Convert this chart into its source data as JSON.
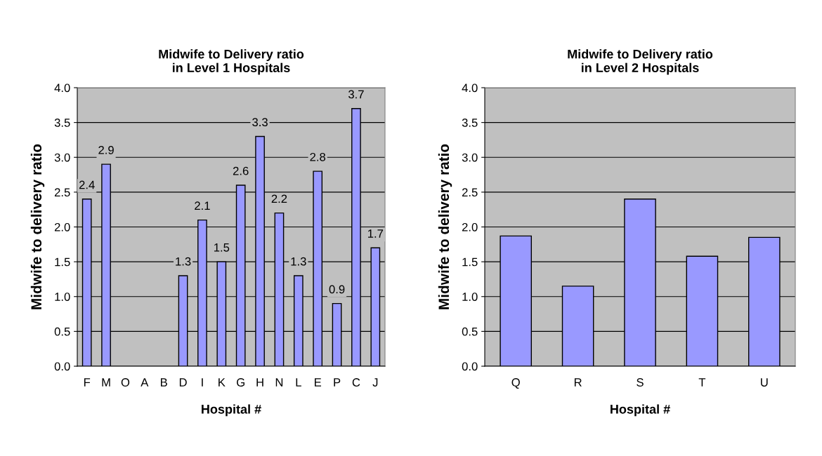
{
  "chart_data": [
    {
      "type": "bar",
      "title": "Midwife to Delivery ratio\nin Level 1 Hospitals",
      "xlabel": "Hospital #",
      "ylabel": "Midwife to delivery ratio",
      "categories": [
        "F",
        "M",
        "O",
        "A",
        "B",
        "D",
        "I",
        "K",
        "G",
        "H",
        "N",
        "L",
        "E",
        "P",
        "C",
        "J"
      ],
      "values": [
        2.4,
        2.9,
        null,
        null,
        null,
        1.3,
        2.1,
        1.5,
        2.6,
        3.3,
        2.2,
        1.3,
        2.8,
        0.9,
        3.7,
        1.7
      ],
      "color": "#9999ff",
      "ylim": [
        0,
        4
      ],
      "yticks": [
        {
          "value": 0,
          "label": "0.0"
        },
        {
          "value": 0.5,
          "label": "0.5"
        },
        {
          "value": 1,
          "label": "1.0"
        },
        {
          "value": 1.5,
          "label": "1.5"
        },
        {
          "value": 2,
          "label": "2.0"
        },
        {
          "value": 2.5,
          "label": "2.5"
        },
        {
          "value": 3,
          "label": "3.0"
        },
        {
          "value": 3.5,
          "label": "3.5"
        },
        {
          "value": 4,
          "label": "4.0"
        }
      ],
      "grid": "y",
      "data_labels": true
    },
    {
      "type": "bar",
      "title": "Midwife to Delivery ratio\nin Level 2 Hospitals",
      "xlabel": "Hospital #",
      "ylabel": "Midwife to delivery ratio",
      "categories": [
        "Q",
        "R",
        "S",
        "T",
        "U"
      ],
      "values": [
        1.87,
        1.15,
        2.4,
        1.58,
        1.85
      ],
      "color": "#9999ff",
      "ylim": [
        0,
        4
      ],
      "yticks": [
        {
          "value": 0,
          "label": "0.0"
        },
        {
          "value": 0.5,
          "label": "0.5"
        },
        {
          "value": 1,
          "label": "1.0"
        },
        {
          "value": 1.5,
          "label": "1.5"
        },
        {
          "value": 2,
          "label": "2.0"
        },
        {
          "value": 2.5,
          "label": "2.5"
        },
        {
          "value": 3,
          "label": "3.0"
        },
        {
          "value": 3.5,
          "label": "3.5"
        },
        {
          "value": 4,
          "label": "4.0"
        }
      ],
      "grid": "y"
    }
  ]
}
